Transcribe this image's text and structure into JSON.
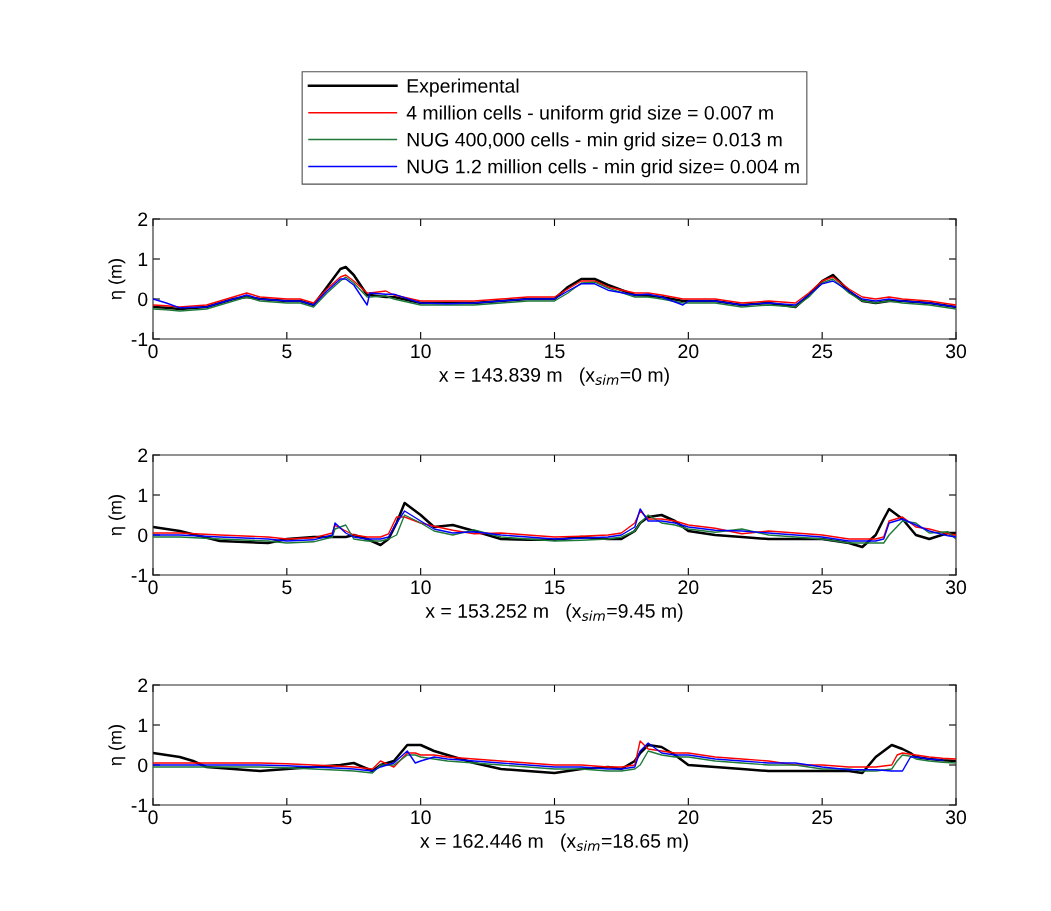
{
  "chart_data": [
    {
      "type": "line",
      "xlabel": "x = 143.839 m   (x$_{sim}$=0 m)",
      "ylabel": "η (m)",
      "xlim": [
        0,
        30
      ],
      "ylim": [
        -1,
        2
      ],
      "xticks": [
        0,
        5,
        10,
        15,
        20,
        25,
        30
      ],
      "yticks": [
        -1,
        0,
        1,
        2
      ],
      "grid": false,
      "legend": "top",
      "marker": "none",
      "line_style": "solid",
      "x": [
        0,
        0.5,
        1,
        2,
        3,
        3.5,
        4,
        5,
        5.5,
        6,
        6.5,
        7,
        7.2,
        7.5,
        8,
        8.1,
        8.7,
        9,
        10,
        11,
        12,
        13,
        14,
        15,
        15.5,
        16,
        16.5,
        17,
        18,
        18.5,
        19,
        19.8,
        20,
        21,
        22,
        23,
        24,
        24.5,
        25,
        25.4,
        26,
        26.5,
        27,
        27.5,
        28,
        29,
        30
      ],
      "series": [
        {
          "name": "Experimental",
          "color": "#000000",
          "values": [
            -0.2,
            -0.22,
            -0.25,
            -0.2,
            0.0,
            0.05,
            0.0,
            -0.05,
            -0.05,
            -0.15,
            0.3,
            0.75,
            0.8,
            0.6,
            0.1,
            0.1,
            0.05,
            0.05,
            -0.1,
            -0.1,
            -0.1,
            -0.05,
            0.0,
            0.0,
            0.3,
            0.5,
            0.5,
            0.35,
            0.1,
            0.08,
            0.05,
            -0.05,
            -0.05,
            -0.05,
            -0.15,
            -0.1,
            -0.2,
            0.1,
            0.45,
            0.6,
            0.2,
            -0.05,
            -0.1,
            -0.05,
            -0.05,
            -0.1,
            -0.2
          ]
        },
        {
          "name": "4 million cells - uniform grid size = 0.007 m",
          "color": "#ff0000",
          "values": [
            -0.15,
            -0.17,
            -0.2,
            -0.15,
            0.05,
            0.15,
            0.05,
            0.0,
            0.0,
            -0.1,
            0.25,
            0.55,
            0.6,
            0.45,
            0.15,
            0.15,
            0.2,
            0.1,
            -0.05,
            -0.05,
            -0.05,
            0.0,
            0.05,
            0.05,
            0.25,
            0.45,
            0.45,
            0.3,
            0.15,
            0.15,
            0.1,
            0.0,
            0.0,
            0.0,
            -0.1,
            -0.05,
            -0.1,
            0.15,
            0.45,
            0.55,
            0.25,
            0.05,
            0.0,
            0.05,
            0.0,
            -0.05,
            -0.15
          ]
        },
        {
          "name": "NUG 400,000 cells - min grid size= 0.013 m",
          "color": "#1f7a3a",
          "values": [
            -0.25,
            -0.27,
            -0.3,
            -0.25,
            -0.05,
            0.05,
            -0.05,
            -0.1,
            -0.1,
            -0.2,
            0.15,
            0.45,
            0.55,
            0.4,
            0.05,
            0.05,
            0.08,
            0.0,
            -0.15,
            -0.15,
            -0.15,
            -0.1,
            -0.05,
            -0.05,
            0.15,
            0.4,
            0.42,
            0.27,
            0.05,
            0.05,
            0.0,
            -0.1,
            -0.1,
            -0.1,
            -0.2,
            -0.15,
            -0.2,
            0.05,
            0.4,
            0.5,
            0.15,
            -0.05,
            -0.1,
            -0.05,
            -0.1,
            -0.15,
            -0.25
          ]
        },
        {
          "name": "NUG 1.2 million cells - min grid size= 0.004 m",
          "color": "#0000ff",
          "values": [
            0.0,
            -0.1,
            -0.22,
            -0.2,
            0.0,
            0.1,
            0.0,
            -0.05,
            -0.05,
            -0.15,
            0.2,
            0.5,
            0.5,
            0.35,
            -0.15,
            0.15,
            0.12,
            0.12,
            -0.1,
            -0.12,
            -0.1,
            -0.05,
            0.0,
            0.0,
            0.2,
            0.38,
            0.38,
            0.22,
            0.1,
            0.12,
            0.05,
            -0.15,
            -0.05,
            -0.05,
            -0.15,
            -0.1,
            -0.15,
            0.1,
            0.38,
            0.45,
            0.2,
            0.0,
            -0.05,
            0.0,
            -0.05,
            -0.1,
            -0.2
          ]
        }
      ]
    },
    {
      "type": "line",
      "xlabel": "x = 153.252 m   (x$_{sim}$=9.45 m)",
      "ylabel": "η (m)",
      "xlim": [
        0,
        30
      ],
      "ylim": [
        -1,
        2
      ],
      "xticks": [
        0,
        5,
        10,
        15,
        20,
        25,
        30
      ],
      "yticks": [
        -1,
        0,
        1,
        2
      ],
      "grid": false,
      "marker": "none",
      "line_style": "solid",
      "x": [
        0,
        1,
        2.5,
        4.3,
        5,
        6,
        6.7,
        6.8,
        7.2,
        7.5,
        8,
        8.5,
        8.8,
        9.1,
        9.4,
        10,
        10.5,
        11.2,
        12,
        13,
        14,
        15,
        16,
        17,
        17.5,
        18,
        18.2,
        18.5,
        19,
        19.5,
        20,
        21,
        22,
        23,
        24,
        25,
        26,
        26.5,
        27,
        27.3,
        27.5,
        28,
        28.5,
        29,
        29.7,
        30
      ],
      "series": [
        {
          "color": "#000000",
          "values": [
            0.2,
            0.1,
            -0.15,
            -0.2,
            -0.1,
            -0.05,
            -0.05,
            -0.05,
            -0.05,
            0.0,
            -0.1,
            -0.25,
            -0.1,
            0.3,
            0.8,
            0.5,
            0.2,
            0.25,
            0.1,
            -0.1,
            -0.12,
            -0.12,
            -0.05,
            -0.1,
            -0.1,
            0.1,
            0.3,
            0.45,
            0.5,
            0.35,
            0.1,
            0.0,
            -0.05,
            -0.1,
            -0.1,
            -0.1,
            -0.2,
            -0.3,
            0.0,
            0.4,
            0.65,
            0.4,
            0.0,
            -0.1,
            0.05,
            0.05
          ]
        },
        {
          "color": "#ff0000",
          "values": [
            0.05,
            0.05,
            0.0,
            -0.05,
            -0.1,
            -0.07,
            0.05,
            0.24,
            0.1,
            0.0,
            -0.05,
            -0.05,
            0.03,
            0.45,
            0.45,
            0.3,
            0.22,
            0.12,
            0.03,
            0.05,
            0.0,
            -0.05,
            -0.03,
            0.0,
            0.05,
            0.3,
            0.6,
            0.4,
            0.4,
            0.35,
            0.25,
            0.17,
            0.03,
            0.1,
            0.05,
            0.0,
            -0.1,
            -0.1,
            -0.1,
            -0.05,
            0.35,
            0.45,
            0.2,
            0.15,
            0.03,
            0.0
          ]
        },
        {
          "color": "#1f7a3a",
          "values": [
            -0.05,
            -0.05,
            -0.1,
            -0.15,
            -0.2,
            -0.17,
            -0.05,
            0.15,
            0.25,
            -0.1,
            -0.15,
            -0.15,
            -0.1,
            0.0,
            0.5,
            0.3,
            0.1,
            0.0,
            0.13,
            -0.05,
            -0.1,
            -0.15,
            -0.13,
            -0.1,
            -0.05,
            0.1,
            0.3,
            0.5,
            0.3,
            0.25,
            0.15,
            0.07,
            0.15,
            0.0,
            -0.05,
            -0.1,
            -0.2,
            -0.2,
            -0.2,
            -0.2,
            0.0,
            0.35,
            0.3,
            0.05,
            0.08,
            -0.1
          ]
        },
        {
          "color": "#0000ff",
          "values": [
            0.0,
            0.0,
            -0.05,
            -0.1,
            -0.15,
            -0.12,
            0.0,
            0.3,
            0.05,
            -0.05,
            -0.1,
            -0.1,
            -0.05,
            0.3,
            0.6,
            0.35,
            0.15,
            0.05,
            0.08,
            0.0,
            -0.05,
            -0.1,
            -0.08,
            -0.05,
            0.0,
            0.2,
            0.65,
            0.35,
            0.35,
            0.3,
            0.2,
            0.12,
            0.1,
            0.05,
            0.0,
            -0.05,
            -0.15,
            -0.15,
            -0.15,
            -0.1,
            0.3,
            0.4,
            0.25,
            0.1,
            -0.02,
            -0.05
          ]
        }
      ]
    },
    {
      "type": "line",
      "xlabel": "x = 162.446 m   (x$_{sim}$=18.65 m)",
      "ylabel": "η (m)",
      "xlim": [
        0,
        30
      ],
      "ylim": [
        -1,
        2
      ],
      "xticks": [
        0,
        5,
        10,
        15,
        20,
        25,
        30
      ],
      "yticks": [
        -1,
        0,
        1,
        2
      ],
      "grid": false,
      "marker": "none",
      "line_style": "solid",
      "x": [
        0,
        1,
        1.5,
        2,
        3,
        4,
        5,
        6,
        7,
        7.5,
        8.2,
        8.5,
        9,
        9.5,
        9.8,
        10,
        10.5,
        11,
        12,
        13,
        14,
        15,
        16,
        17,
        17.5,
        18,
        18.2,
        18.5,
        19,
        19.5,
        20,
        21,
        22,
        23,
        24,
        25,
        26,
        26.5,
        27,
        27.6,
        27.8,
        28,
        28.3,
        28.5,
        29,
        29.5,
        30
      ],
      "series": [
        {
          "color": "#000000",
          "values": [
            0.3,
            0.2,
            0.1,
            -0.05,
            -0.1,
            -0.15,
            -0.1,
            -0.05,
            0.0,
            0.05,
            -0.15,
            0.0,
            0.1,
            0.5,
            0.5,
            0.5,
            0.35,
            0.25,
            0.05,
            -0.1,
            -0.15,
            -0.2,
            -0.1,
            -0.05,
            -0.1,
            0.1,
            0.3,
            0.5,
            0.45,
            0.25,
            0.0,
            -0.05,
            -0.1,
            -0.15,
            -0.15,
            -0.15,
            -0.15,
            -0.2,
            0.2,
            0.5,
            0.45,
            0.4,
            0.3,
            0.2,
            0.15,
            0.12,
            0.1
          ]
        },
        {
          "color": "#ff0000",
          "values": [
            0.05,
            0.05,
            0.05,
            0.05,
            0.05,
            0.05,
            0.03,
            0.0,
            -0.03,
            -0.05,
            -0.1,
            0.1,
            -0.05,
            0.3,
            0.3,
            0.25,
            0.25,
            0.2,
            0.15,
            0.1,
            0.05,
            0.0,
            0.0,
            -0.05,
            -0.05,
            0.0,
            0.6,
            0.4,
            0.35,
            0.3,
            0.3,
            0.2,
            0.15,
            0.1,
            0.0,
            0.0,
            -0.05,
            -0.05,
            -0.05,
            0.0,
            0.25,
            0.3,
            0.27,
            0.25,
            0.2,
            0.17,
            0.15
          ]
        },
        {
          "color": "#1f7a3a",
          "values": [
            -0.05,
            -0.05,
            -0.05,
            -0.05,
            -0.05,
            -0.05,
            -0.07,
            -0.1,
            -0.13,
            -0.15,
            -0.2,
            0.0,
            0.0,
            0.25,
            0.25,
            0.2,
            0.15,
            0.1,
            0.05,
            0.0,
            -0.05,
            -0.1,
            -0.1,
            -0.15,
            -0.15,
            -0.1,
            0.0,
            0.35,
            0.25,
            0.2,
            0.2,
            0.1,
            0.05,
            0.0,
            0.0,
            -0.1,
            -0.1,
            -0.15,
            -0.15,
            -0.1,
            0.1,
            0.25,
            0.22,
            0.15,
            0.1,
            0.07,
            0.05
          ]
        },
        {
          "color": "#0000ff",
          "values": [
            0.0,
            0.0,
            0.0,
            0.0,
            0.0,
            0.0,
            -0.02,
            -0.05,
            -0.08,
            -0.1,
            -0.15,
            -0.05,
            0.05,
            0.35,
            0.05,
            0.1,
            0.2,
            0.15,
            0.1,
            0.05,
            0.0,
            -0.05,
            -0.05,
            -0.1,
            -0.1,
            -0.05,
            0.35,
            0.55,
            0.3,
            0.25,
            0.25,
            0.15,
            0.1,
            0.05,
            0.05,
            -0.05,
            -0.12,
            -0.12,
            -0.12,
            -0.15,
            -0.15,
            -0.15,
            0.2,
            0.2,
            0.15,
            0.12,
            null
          ]
        }
      ]
    }
  ]
}
